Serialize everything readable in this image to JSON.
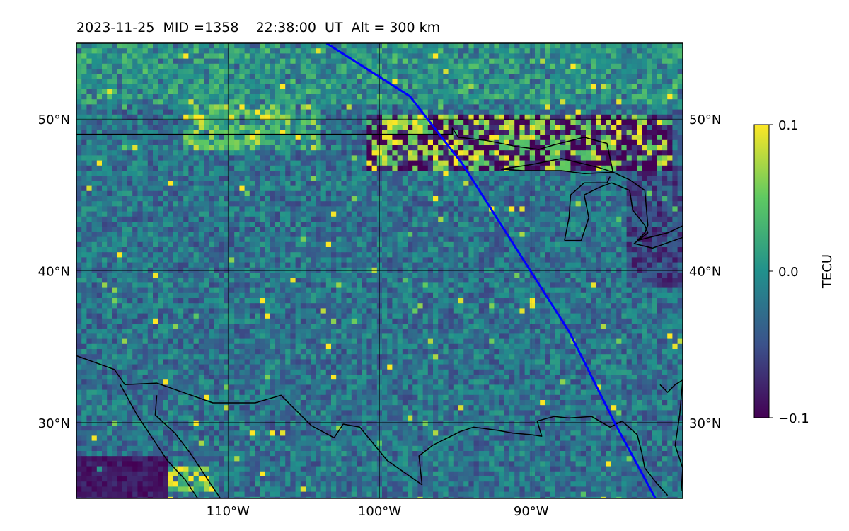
{
  "header": {
    "title": "2023-11-25  MID =1358    22:38:00  UT  Alt = 300 km"
  },
  "map": {
    "region": "central North America",
    "extent": {
      "lon_min": -120,
      "lon_max": -80,
      "lat_min": 25,
      "lat_max": 55
    },
    "gridlines": true,
    "lat_ticks": [
      {
        "value": 50,
        "label": "50°N"
      },
      {
        "value": 40,
        "label": "40°N"
      },
      {
        "value": 30,
        "label": "30°N"
      }
    ],
    "lon_ticks": [
      {
        "value": -110,
        "label": "110°W"
      },
      {
        "value": -100,
        "label": "100°W"
      },
      {
        "value": -90,
        "label": "90°W"
      }
    ],
    "track": {
      "color": "#0000ff",
      "points": [
        {
          "lon": -103.5,
          "lat": 55
        },
        {
          "lon": -98.0,
          "lat": 51.5
        },
        {
          "lon": -94.5,
          "lat": 47.0
        },
        {
          "lon": -91.0,
          "lat": 41.5
        },
        {
          "lon": -87.5,
          "lat": 36.0
        },
        {
          "lon": -84.5,
          "lat": 30.0
        },
        {
          "lon": -81.8,
          "lat": 25
        }
      ]
    },
    "features": [
      "anomaly-band-near-50N",
      "great-lakes",
      "us-canada-border",
      "gulf-coast",
      "mexico-pacific-coast",
      "baja-california"
    ]
  },
  "colorbar": {
    "label": "TECU",
    "min": -0.1,
    "max": 0.1,
    "ticks": [
      {
        "value": 0.1,
        "label": "0.1"
      },
      {
        "value": 0.0,
        "label": "0.0"
      },
      {
        "value": -0.1,
        "label": "−0.1"
      }
    ],
    "colormap": "viridis",
    "colors": [
      "#440154",
      "#3b528b",
      "#21918c",
      "#5ec962",
      "#fde725"
    ]
  }
}
